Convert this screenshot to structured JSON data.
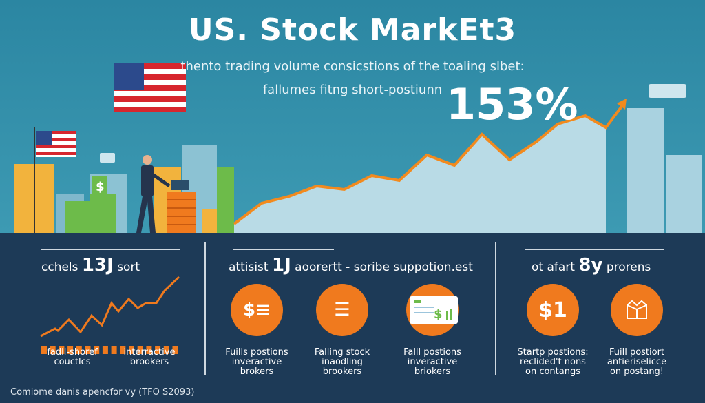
{
  "header": {
    "title": "US. Stock MarkEt3",
    "subtitle_line1": "thento trading volume consicstions of the toaling slbet:",
    "subtitle_line2": "fallumes fitng short-postiunn",
    "highlight": "153%"
  },
  "colors": {
    "top_bg": "#2b86a2",
    "bottom_bg": "#1d3a57",
    "accent": "#f07a1e",
    "chart_fill": "#b9dbe6"
  },
  "panels": [
    {
      "prefix": "cchels",
      "number": "13J",
      "suffix": "sort",
      "labels": [
        "fadll-shoref\ncouctlcs",
        "interractive\nbrookers"
      ]
    },
    {
      "prefix": "attisist",
      "number": "1J",
      "suffix": "aoorertt  - soribe suppotion.est",
      "items": [
        {
          "icon": "dollar-list-icon",
          "glyph": "$≡",
          "label": "Fuills postions\ninveractive\nbrokers"
        },
        {
          "icon": "menu-lines-icon",
          "glyph": "☰",
          "label": "Falling stock\ninaodling\nbrookers"
        },
        {
          "icon": "money-bag-document-icon",
          "label": "Falll postions\ninveractive\nbriokers"
        }
      ]
    },
    {
      "prefix": "ot afart",
      "number": "8y",
      "suffix": "prorens",
      "items": [
        {
          "icon": "dollar-icon",
          "glyph": "$1",
          "label": "Startp postions:\nreclided't nons\non contangs"
        },
        {
          "icon": "box-icon",
          "glyph": "",
          "label": "Fuill postiort\nantieriselicce\non postang!"
        }
      ]
    }
  ],
  "footer": "Comiome danis apencfor vy (TFO S2093)"
}
